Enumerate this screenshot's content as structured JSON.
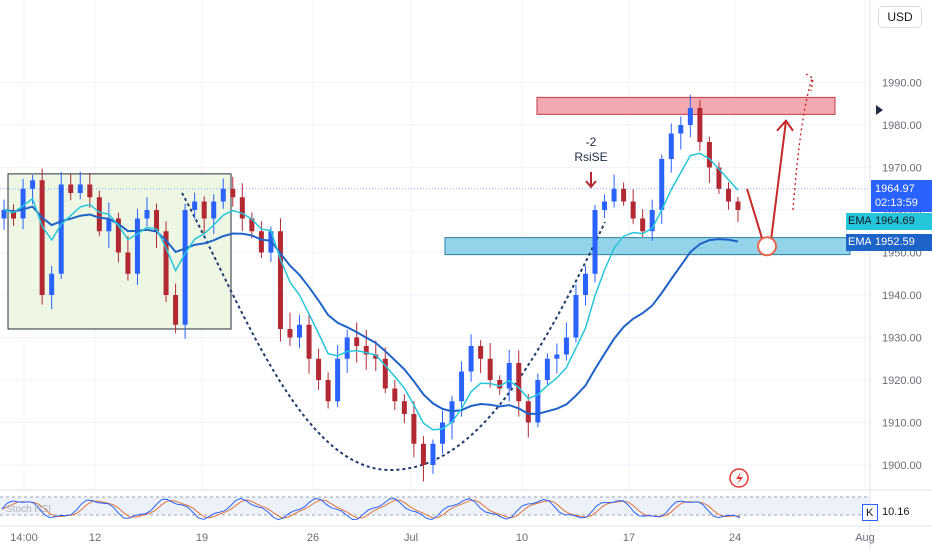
{
  "header": {
    "currency_button": "USD"
  },
  "symbol": {
    "line1": "",
    "line2": ""
  },
  "price_axis": {
    "ticks": [
      "1990.00",
      "1980.00",
      "1970.00",
      "1960.00",
      "1950.00",
      "1940.00",
      "1930.00",
      "1920.00",
      "1910.00",
      "1900.00"
    ],
    "current_price": "1964.97",
    "countdown": "02:13:59",
    "ema_fast_label": "EMA",
    "ema_fast_value": "1964.69",
    "ema_slow_label": "EMA",
    "ema_slow_value": "1952.59",
    "stoch_label": "K",
    "stoch_value": "10.16"
  },
  "time_axis": {
    "ticks": [
      "14:00",
      "12",
      "19",
      "26",
      "Jul",
      "10",
      "17",
      "24",
      "Aug"
    ]
  },
  "annotations": {
    "signal_line1": "-2",
    "signal_line2": "RsiSE",
    "stoch_pane_label": "Stoch RSI"
  },
  "colors": {
    "up": "#2962ff",
    "down": "#b22833",
    "ema_fast": "#26c6da",
    "ema_slow": "#1e63c8",
    "resistance_zone": "#f3a6ad",
    "support_zone": "#8fd3e8",
    "range_box": "#eef6e4",
    "projection": "#c62828"
  },
  "chart_data": {
    "type": "candlestick",
    "ylim": [
      1895,
      1995
    ],
    "x_ticks": [
      "14:00",
      "12",
      "19",
      "26",
      "Jul",
      "10",
      "17",
      "24",
      "Aug"
    ],
    "current_price": 1964.97,
    "ema_fast_last": 1964.69,
    "ema_slow_last": 1952.59,
    "resistance_zone": [
      1982.5,
      1986.5
    ],
    "support_zone": [
      1949.5,
      1953.5
    ],
    "range_box": [
      1932,
      1968.5
    ],
    "projection_target": 1951,
    "projection_high": 1981,
    "close_path": [
      1960,
      1958,
      1965,
      1967,
      1940,
      1945,
      1966,
      1964,
      1966,
      1963,
      1955,
      1958,
      1950,
      1945,
      1958,
      1960,
      1955,
      1940,
      1933,
      1960,
      1962,
      1958,
      1962,
      1965,
      1963,
      1958,
      1955,
      1950,
      1955,
      1932,
      1930,
      1933,
      1925,
      1920,
      1915,
      1925,
      1930,
      1928,
      1926,
      1925,
      1918,
      1915,
      1912,
      1905,
      1900,
      1905,
      1910,
      1915,
      1922,
      1928,
      1925,
      1920,
      1918,
      1924,
      1915,
      1910,
      1920,
      1925,
      1926,
      1930,
      1940,
      1945,
      1960,
      1962,
      1965,
      1962,
      1958,
      1955,
      1960,
      1972,
      1978,
      1980,
      1984,
      1976,
      1970,
      1965,
      1962,
      1960
    ],
    "stoch_k_last": 10.16
  }
}
